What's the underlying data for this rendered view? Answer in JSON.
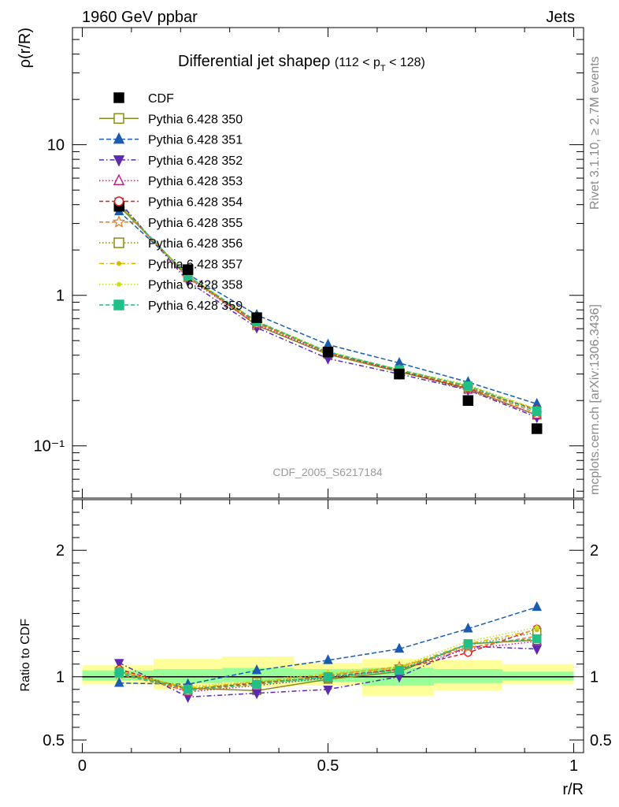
{
  "header": {
    "left": "1960 GeV ppbar",
    "right": "Jets"
  },
  "title": {
    "main": "Differential jet shape",
    "symbol": "ρ",
    "sub_open": "(112 < p",
    "sub_index": "T",
    "sub_close": " < 128)"
  },
  "side_labels": {
    "rivet": "Rivet 3.1.10, ≥ 2.7M events",
    "mcplots": "mcplots.cern.ch [arXiv:1306.3436]"
  },
  "watermark": "CDF_2005_S6217184",
  "colors": {
    "yellow_band": "#ffff99",
    "green_band": "#99ff99"
  },
  "chart_data": [
    {
      "type": "scatter",
      "ylabel": "ρ(r/R)",
      "yscale": "log",
      "ylim": [
        0.045,
        60
      ],
      "xlim": [
        -0.02,
        1.02
      ],
      "y_ticks": [
        "10",
        "1",
        "10⁻¹"
      ],
      "x": [
        0.075,
        0.215,
        0.355,
        0.5,
        0.645,
        0.785,
        0.925
      ],
      "series": [
        {
          "name": "CDF",
          "color": "#000000",
          "marker": "square-filled",
          "dash": "",
          "values": [
            3.9,
            1.48,
            0.71,
            0.42,
            0.3,
            0.2,
            0.13
          ]
        },
        {
          "name": "Pythia 6.428 350",
          "color": "#888a1e",
          "marker": "square-open",
          "dash": "",
          "values": [
            3.9,
            1.35,
            0.63,
            0.405,
            0.31,
            0.24,
            0.16
          ]
        },
        {
          "name": "Pythia 6.428 351",
          "color": "#1a5db0",
          "marker": "triangle-up-filled",
          "dash": "6,3",
          "values": [
            3.6,
            1.38,
            0.74,
            0.47,
            0.355,
            0.265,
            0.19
          ]
        },
        {
          "name": "Pythia 6.428 352",
          "color": "#5b2bb0",
          "marker": "triangle-down-filled",
          "dash": "6,3,1.5,3",
          "values": [
            4.2,
            1.24,
            0.61,
            0.38,
            0.3,
            0.235,
            0.155
          ]
        },
        {
          "name": "Pythia 6.428 353",
          "color": "#c02090",
          "marker": "triangle-up-open",
          "dash": "1.5,2.5",
          "values": [
            4.0,
            1.3,
            0.64,
            0.41,
            0.315,
            0.235,
            0.16
          ]
        },
        {
          "name": "Pythia 6.428 354",
          "color": "#e02020",
          "marker": "circle-open",
          "dash": "5,3",
          "values": [
            4.05,
            1.32,
            0.66,
            0.415,
            0.315,
            0.24,
            0.175
          ]
        },
        {
          "name": "Pythia 6.428 355",
          "color": "#f07820",
          "marker": "star-open",
          "dash": "5,3",
          "values": [
            3.95,
            1.31,
            0.65,
            0.42,
            0.32,
            0.245,
            0.165
          ]
        },
        {
          "name": "Pythia 6.428 356",
          "color": "#888a1e",
          "marker": "square-open",
          "dash": "1.5,2.5",
          "values": [
            4.0,
            1.33,
            0.665,
            0.415,
            0.315,
            0.245,
            0.17
          ]
        },
        {
          "name": "Pythia 6.428 357",
          "color": "#d4b800",
          "marker": "dot-filled",
          "dash": "6,3,1.5,3",
          "values": [
            4.0,
            1.34,
            0.67,
            0.42,
            0.32,
            0.25,
            0.175
          ]
        },
        {
          "name": "Pythia 6.428 358",
          "color": "#c8e020",
          "marker": "dot-filled",
          "dash": "1.5,2.5",
          "values": [
            4.0,
            1.35,
            0.675,
            0.425,
            0.32,
            0.255,
            0.175
          ]
        },
        {
          "name": "Pythia 6.428 359",
          "color": "#20c088",
          "marker": "square-filled",
          "dash": "5,3",
          "values": [
            4.0,
            1.34,
            0.67,
            0.42,
            0.32,
            0.25,
            0.17
          ]
        }
      ]
    },
    {
      "type": "scatter",
      "xlabel": "r/R",
      "ylabel": "Ratio to CDF",
      "ylim": [
        0.4,
        2.4
      ],
      "xlim": [
        -0.02,
        1.02
      ],
      "y_ticks": [
        "2",
        "1",
        "0.5"
      ],
      "x_ticks": [
        "0",
        "0.5",
        "1"
      ],
      "reference_line": 1,
      "bands": [
        {
          "x_from": 0.0,
          "x_to": 0.145,
          "yellow": [
            0.94,
            1.09
          ],
          "green": [
            0.97,
            1.05
          ]
        },
        {
          "x_from": 0.145,
          "x_to": 0.285,
          "yellow": [
            0.9,
            1.14
          ],
          "green": [
            0.95,
            1.06
          ]
        },
        {
          "x_from": 0.285,
          "x_to": 0.43,
          "yellow": [
            0.92,
            1.16
          ],
          "green": [
            0.96,
            1.07
          ]
        },
        {
          "x_from": 0.43,
          "x_to": 0.57,
          "yellow": [
            0.93,
            1.11
          ],
          "green": [
            0.96,
            1.06
          ]
        },
        {
          "x_from": 0.57,
          "x_to": 0.715,
          "yellow": [
            0.85,
            1.14
          ],
          "green": [
            0.93,
            1.07
          ]
        },
        {
          "x_from": 0.715,
          "x_to": 0.855,
          "yellow": [
            0.89,
            1.13
          ],
          "green": [
            0.95,
            1.06
          ]
        },
        {
          "x_from": 0.855,
          "x_to": 1.0,
          "yellow": [
            0.94,
            1.1
          ],
          "green": [
            0.97,
            1.04
          ]
        }
      ],
      "x": [
        0.075,
        0.215,
        0.355,
        0.5,
        0.645,
        0.785,
        0.925
      ],
      "series": [
        {
          "name": "Pythia 6.428 350",
          "color": "#888a1e",
          "marker": "square-open",
          "dash": "",
          "values": [
            1.04,
            0.91,
            0.89,
            0.98,
            1.04,
            1.26,
            1.29
          ]
        },
        {
          "name": "Pythia 6.428 351",
          "color": "#1a5db0",
          "marker": "triangle-up-filled",
          "dash": "6,3",
          "values": [
            0.95,
            0.94,
            1.05,
            1.13,
            1.22,
            1.38,
            1.55
          ]
        },
        {
          "name": "Pythia 6.428 352",
          "color": "#5b2bb0",
          "marker": "triangle-down-filled",
          "dash": "6,3,1.5,3",
          "values": [
            1.11,
            0.84,
            0.87,
            0.9,
            1.0,
            1.24,
            1.22
          ]
        },
        {
          "name": "Pythia 6.428 353",
          "color": "#c02090",
          "marker": "triangle-up-open",
          "dash": "1.5,2.5",
          "values": [
            1.05,
            0.88,
            0.93,
            0.99,
            1.06,
            1.22,
            1.28
          ]
        },
        {
          "name": "Pythia 6.428 354",
          "color": "#e02020",
          "marker": "circle-open",
          "dash": "5,3",
          "values": [
            1.06,
            0.9,
            0.95,
            1.0,
            1.06,
            1.19,
            1.38
          ]
        },
        {
          "name": "Pythia 6.428 355",
          "color": "#f07820",
          "marker": "star-open",
          "dash": "5,3",
          "values": [
            1.02,
            0.89,
            0.94,
            1.01,
            1.08,
            1.23,
            1.32
          ]
        },
        {
          "name": "Pythia 6.428 356",
          "color": "#888a1e",
          "marker": "square-open",
          "dash": "1.5,2.5",
          "values": [
            1.04,
            0.9,
            0.96,
            0.99,
            1.06,
            1.25,
            1.35
          ]
        },
        {
          "name": "Pythia 6.428 357",
          "color": "#d4b800",
          "marker": "dot-filled",
          "dash": "6,3,1.5,3",
          "values": [
            1.04,
            0.91,
            0.96,
            1.02,
            1.07,
            1.26,
            1.37
          ]
        },
        {
          "name": "Pythia 6.428 358",
          "color": "#c8e020",
          "marker": "dot-filled",
          "dash": "1.5,2.5",
          "values": [
            1.04,
            0.92,
            0.97,
            1.03,
            1.08,
            1.28,
            1.39
          ]
        },
        {
          "name": "Pythia 6.428 359",
          "color": "#20c088",
          "marker": "square-filled",
          "dash": "5,3",
          "values": [
            1.03,
            0.9,
            0.94,
            1.0,
            1.05,
            1.26,
            1.3
          ]
        }
      ]
    }
  ]
}
